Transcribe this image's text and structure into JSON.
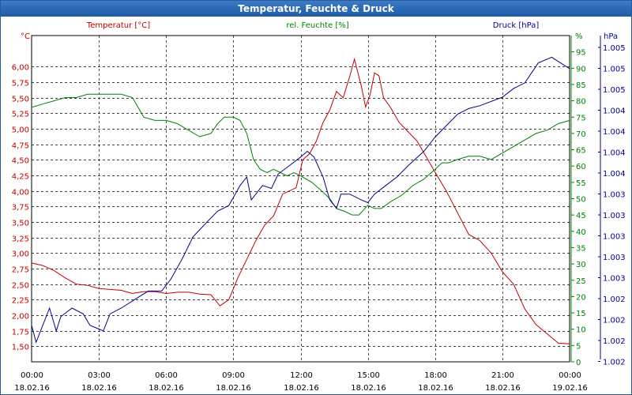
{
  "window": {
    "title": "Temperatur, Feuchte & Druck"
  },
  "colors": {
    "temperature": "#c00000",
    "humidity": "#008000",
    "pressure": "#00008b",
    "grid": "#000000",
    "titlebar": "#2a64b0"
  },
  "chart_data": {
    "type": "line",
    "title": "Temperatur, Feuchte & Druck",
    "grid": true,
    "x_ticks": [
      {
        "time": "00:00",
        "date": "18.02.16"
      },
      {
        "time": "03:00",
        "date": "18.02.16"
      },
      {
        "time": "06:00",
        "date": "18.02.16"
      },
      {
        "time": "09:00",
        "date": "18.02.16"
      },
      {
        "time": "12:00",
        "date": "18.02.16"
      },
      {
        "time": "15:00",
        "date": "18.02.16"
      },
      {
        "time": "18:00",
        "date": "18.02.16"
      },
      {
        "time": "21:00",
        "date": "18.02.16"
      },
      {
        "time": "00:00",
        "date": "19.02.16"
      }
    ],
    "axes": {
      "temperature": {
        "unit": "°C",
        "label": "Temperatur [°C]",
        "ylim": [
          1.25,
          6.5
        ],
        "ticks": [
          "1,50",
          "1,75",
          "2,00",
          "2,25",
          "2,50",
          "2,75",
          "3,00",
          "3,25",
          "3,50",
          "3,75",
          "4,00",
          "4,25",
          "4,50",
          "4,75",
          "5,00",
          "5,25",
          "5,50",
          "5,75",
          "6,00"
        ]
      },
      "humidity": {
        "unit": "%",
        "label": "rel. Feuchte [%]",
        "ylim": [
          0,
          100
        ],
        "ticks": [
          "0",
          "5",
          "10",
          "15",
          "20",
          "25",
          "30",
          "35",
          "40",
          "45",
          "50",
          "55",
          "60",
          "65",
          "70",
          "75",
          "80",
          "85",
          "90",
          "95"
        ]
      },
      "pressure": {
        "unit": "hPa",
        "label": "Druck [hPa]",
        "ticks": [
          "1.005",
          "1.005",
          "1.005",
          "1.004",
          "1.004",
          "1.004",
          "1.004",
          "1.003",
          "1.003",
          "1.003",
          "1.003",
          "1.003",
          "1.002",
          "1.002",
          "1.002",
          "1.002"
        ]
      }
    },
    "series": [
      {
        "name": "Temperatur [°C]",
        "axis": "temperature",
        "points": [
          [
            0,
            2.84
          ],
          [
            0.5,
            2.8
          ],
          [
            1,
            2.72
          ],
          [
            1.5,
            2.6
          ],
          [
            2,
            2.5
          ],
          [
            2.5,
            2.48
          ],
          [
            3,
            2.43
          ],
          [
            4,
            2.4
          ],
          [
            4.5,
            2.35
          ],
          [
            5,
            2.38
          ],
          [
            5.5,
            2.38
          ],
          [
            6,
            2.35
          ],
          [
            6.5,
            2.37
          ],
          [
            7,
            2.37
          ],
          [
            7.5,
            2.34
          ],
          [
            8,
            2.33
          ],
          [
            8.4,
            2.15
          ],
          [
            8.8,
            2.25
          ],
          [
            9.2,
            2.6
          ],
          [
            9.6,
            2.9
          ],
          [
            10,
            3.2
          ],
          [
            10.4,
            3.45
          ],
          [
            10.8,
            3.6
          ],
          [
            11.2,
            3.95
          ],
          [
            11.5,
            4.0
          ],
          [
            11.8,
            4.05
          ],
          [
            12.1,
            4.5
          ],
          [
            12.4,
            4.6
          ],
          [
            12.7,
            4.8
          ],
          [
            13,
            5.1
          ],
          [
            13.3,
            5.3
          ],
          [
            13.6,
            5.6
          ],
          [
            13.9,
            5.5
          ],
          [
            14.2,
            5.85
          ],
          [
            14.4,
            6.12
          ],
          [
            14.7,
            5.7
          ],
          [
            14.9,
            5.35
          ],
          [
            15.1,
            5.55
          ],
          [
            15.3,
            5.9
          ],
          [
            15.5,
            5.85
          ],
          [
            15.7,
            5.5
          ],
          [
            16,
            5.35
          ],
          [
            16.4,
            5.1
          ],
          [
            16.8,
            4.95
          ],
          [
            17.2,
            4.8
          ],
          [
            17.6,
            4.55
          ],
          [
            18,
            4.3
          ],
          [
            18.5,
            4.0
          ],
          [
            19,
            3.65
          ],
          [
            19.5,
            3.3
          ],
          [
            20,
            3.2
          ],
          [
            20.5,
            3.0
          ],
          [
            21,
            2.7
          ],
          [
            21.5,
            2.5
          ],
          [
            22,
            2.1
          ],
          [
            22.5,
            1.85
          ],
          [
            23,
            1.7
          ],
          [
            23.5,
            1.55
          ],
          [
            24,
            1.54
          ]
        ]
      },
      {
        "name": "rel. Feuchte [%]",
        "axis": "humidity",
        "points": [
          [
            0,
            78
          ],
          [
            0.5,
            79
          ],
          [
            1,
            80
          ],
          [
            1.5,
            81
          ],
          [
            2,
            81
          ],
          [
            2.5,
            82
          ],
          [
            3,
            82
          ],
          [
            4,
            82
          ],
          [
            4.5,
            81
          ],
          [
            5,
            75
          ],
          [
            5.5,
            74
          ],
          [
            6,
            74
          ],
          [
            6.5,
            73
          ],
          [
            7,
            71
          ],
          [
            7.5,
            69
          ],
          [
            8,
            70
          ],
          [
            8.3,
            73
          ],
          [
            8.6,
            75
          ],
          [
            9,
            75
          ],
          [
            9.3,
            74
          ],
          [
            9.6,
            70
          ],
          [
            9.9,
            62
          ],
          [
            10.2,
            59
          ],
          [
            10.5,
            58
          ],
          [
            10.8,
            59
          ],
          [
            11.1,
            58
          ],
          [
            11.4,
            57
          ],
          [
            11.7,
            58
          ],
          [
            12,
            57
          ],
          [
            12.5,
            55
          ],
          [
            13,
            52
          ],
          [
            13.3,
            50
          ],
          [
            13.6,
            47
          ],
          [
            14,
            46
          ],
          [
            14.3,
            45
          ],
          [
            14.6,
            45
          ],
          [
            15,
            48
          ],
          [
            15.3,
            47
          ],
          [
            15.6,
            47
          ],
          [
            16,
            49
          ],
          [
            16.5,
            51
          ],
          [
            17,
            54
          ],
          [
            17.5,
            56
          ],
          [
            18,
            59
          ],
          [
            18.3,
            61
          ],
          [
            18.6,
            61
          ],
          [
            19,
            62
          ],
          [
            19.5,
            63
          ],
          [
            20,
            63
          ],
          [
            20.5,
            62
          ],
          [
            21,
            64
          ],
          [
            21.5,
            66
          ],
          [
            22,
            68
          ],
          [
            22.5,
            70
          ],
          [
            23,
            71
          ],
          [
            23.5,
            73
          ],
          [
            24,
            74
          ]
        ]
      },
      {
        "name": "Druck [hPa]",
        "axis": "pressure",
        "points": [
          [
            0,
            1.2
          ],
          [
            0.2,
            0.6
          ],
          [
            0.8,
            1.8
          ],
          [
            1.1,
            1.0
          ],
          [
            1.3,
            1.5
          ],
          [
            1.8,
            1.8
          ],
          [
            2.3,
            1.6
          ],
          [
            2.6,
            1.2
          ],
          [
            3.2,
            1.0
          ],
          [
            3.5,
            1.6
          ],
          [
            4.0,
            1.8
          ],
          [
            4.6,
            2.1
          ],
          [
            5.2,
            2.4
          ],
          [
            5.8,
            2.4
          ],
          [
            6.2,
            2.8
          ],
          [
            6.7,
            3.5
          ],
          [
            7.2,
            4.3
          ],
          [
            7.8,
            4.8
          ],
          [
            8.3,
            5.2
          ],
          [
            8.8,
            5.4
          ],
          [
            9.3,
            6.1
          ],
          [
            9.6,
            6.4
          ],
          [
            9.8,
            5.6
          ],
          [
            10.3,
            6.1
          ],
          [
            10.7,
            6.0
          ],
          [
            11.0,
            6.5
          ],
          [
            11.5,
            6.8
          ],
          [
            12,
            7.1
          ],
          [
            12.3,
            7.3
          ],
          [
            12.6,
            7.1
          ],
          [
            13.0,
            6.4
          ],
          [
            13.3,
            5.6
          ],
          [
            13.6,
            5.3
          ],
          [
            13.8,
            5.8
          ],
          [
            14.2,
            5.8
          ],
          [
            14.7,
            5.6
          ],
          [
            15.0,
            5.5
          ],
          [
            15.3,
            5.8
          ],
          [
            15.8,
            6.1
          ],
          [
            16.3,
            6.4
          ],
          [
            16.8,
            6.8
          ],
          [
            17.5,
            7.3
          ],
          [
            18.0,
            7.8
          ],
          [
            18.5,
            8.2
          ],
          [
            19,
            8.6
          ],
          [
            19.5,
            8.8
          ],
          [
            20,
            8.9
          ],
          [
            21,
            9.2
          ],
          [
            21.5,
            9.5
          ],
          [
            22,
            9.7
          ],
          [
            22.6,
            10.4
          ],
          [
            23.2,
            10.6
          ],
          [
            24,
            10.2
          ]
        ]
      }
    ]
  }
}
